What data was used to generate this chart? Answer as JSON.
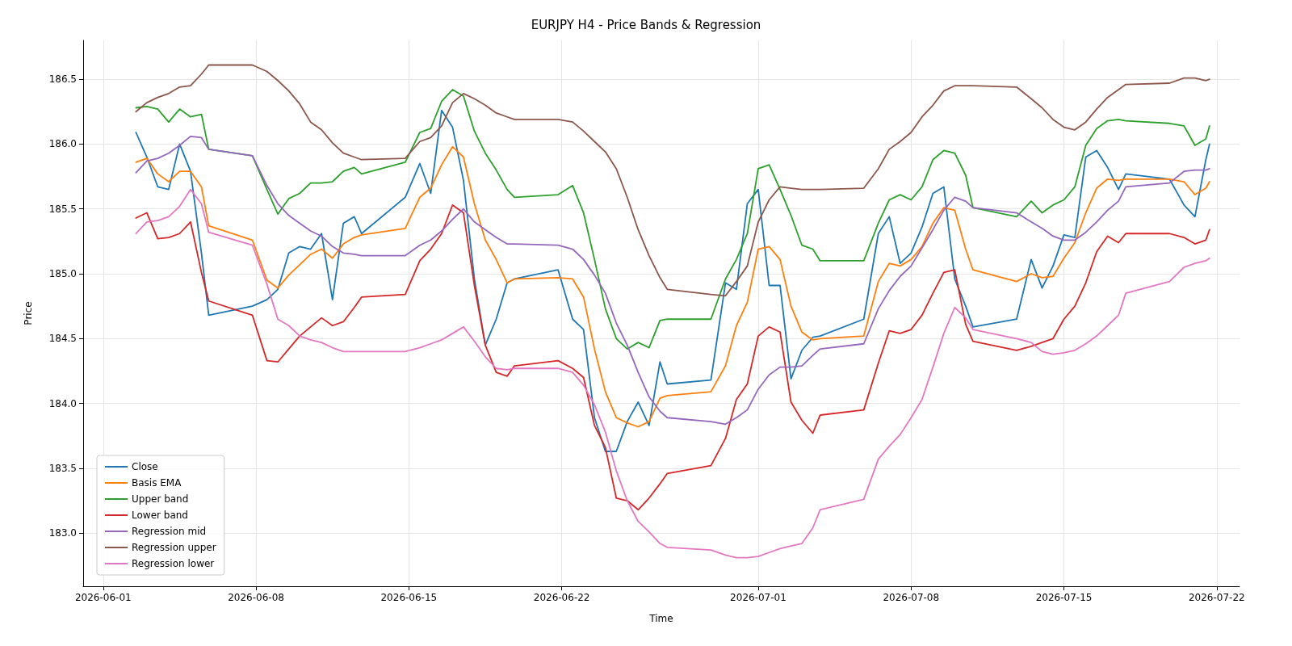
{
  "chart_data": {
    "type": "line",
    "title": "EURJPY H4 - Price Bands & Regression",
    "xlabel": "Time",
    "ylabel": "Price",
    "x": [
      "2026-06-02T12:00",
      "2026-06-03T00:00",
      "2026-06-03T12:00",
      "2026-06-04T00:00",
      "2026-06-04T12:00",
      "2026-06-05T00:00",
      "2026-06-05T12:00",
      "2026-06-05T20:00",
      "2026-06-07T20:00",
      "2026-06-08T12:00",
      "2026-06-09T00:00",
      "2026-06-09T12:00",
      "2026-06-10T00:00",
      "2026-06-10T12:00",
      "2026-06-11T00:00",
      "2026-06-11T12:00",
      "2026-06-12T00:00",
      "2026-06-12T12:00",
      "2026-06-12T20:00",
      "2026-06-14T20:00",
      "2026-06-15T12:00",
      "2026-06-16T00:00",
      "2026-06-16T12:00",
      "2026-06-17T00:00",
      "2026-06-17T12:00",
      "2026-06-18T00:00",
      "2026-06-18T12:00",
      "2026-06-19T00:00",
      "2026-06-19T12:00",
      "2026-06-19T20:00",
      "2026-06-21T20:00",
      "2026-06-22T12:00",
      "2026-06-23T00:00",
      "2026-06-23T12:00",
      "2026-06-24T00:00",
      "2026-06-24T12:00",
      "2026-06-25T00:00",
      "2026-06-25T12:00",
      "2026-06-26T00:00",
      "2026-06-26T12:00",
      "2026-06-26T20:00",
      "2026-06-28T20:00",
      "2026-06-29T12:00",
      "2026-06-30T00:00",
      "2026-06-30T12:00",
      "2026-07-01T00:00",
      "2026-07-01T12:00",
      "2026-07-02T00:00",
      "2026-07-02T12:00",
      "2026-07-03T00:00",
      "2026-07-03T12:00",
      "2026-07-03T20:00",
      "2026-07-05T20:00",
      "2026-07-06T12:00",
      "2026-07-07T00:00",
      "2026-07-07T12:00",
      "2026-07-08T00:00",
      "2026-07-08T12:00",
      "2026-07-09T00:00",
      "2026-07-09T12:00",
      "2026-07-10T00:00",
      "2026-07-10T12:00",
      "2026-07-10T20:00",
      "2026-07-12T20:00",
      "2026-07-13T12:00",
      "2026-07-14T00:00",
      "2026-07-14T12:00",
      "2026-07-15T00:00",
      "2026-07-15T12:00",
      "2026-07-16T00:00",
      "2026-07-16T12:00",
      "2026-07-17T00:00",
      "2026-07-17T12:00",
      "2026-07-17T20:00",
      "2026-07-19T20:00",
      "2026-07-20T12:00",
      "2026-07-21T00:00",
      "2026-07-21T12:00",
      "2026-07-21T16:00"
    ],
    "series": [
      {
        "name": "Close",
        "color": "#1f77b4",
        "values": [
          186.09,
          185.9,
          185.67,
          185.65,
          186.0,
          185.79,
          185.16,
          184.68,
          184.75,
          184.8,
          184.88,
          185.16,
          185.21,
          185.19,
          185.31,
          184.8,
          185.39,
          185.44,
          185.31,
          185.59,
          185.85,
          185.62,
          186.26,
          186.13,
          185.72,
          184.96,
          184.45,
          184.65,
          184.93,
          184.96,
          185.03,
          184.65,
          184.57,
          183.89,
          183.63,
          183.63,
          183.86,
          184.01,
          183.83,
          184.32,
          184.15,
          184.18,
          184.93,
          184.88,
          185.54,
          185.65,
          184.91,
          184.91,
          184.19,
          184.41,
          184.51,
          184.52,
          184.65,
          185.31,
          185.44,
          185.08,
          185.16,
          185.36,
          185.62,
          185.67,
          184.96,
          184.75,
          184.59,
          184.65,
          185.11,
          184.89,
          185.06,
          185.3,
          185.28,
          185.9,
          185.95,
          185.82,
          185.65,
          185.77,
          185.73,
          185.53,
          185.44,
          185.88,
          186.0
        ]
      },
      {
        "name": "Basis EMA",
        "color": "#ff7f0e",
        "values": [
          185.86,
          185.89,
          185.77,
          185.71,
          185.79,
          185.79,
          185.67,
          185.37,
          185.26,
          184.95,
          184.89,
          184.99,
          185.07,
          185.15,
          185.19,
          185.12,
          185.23,
          185.28,
          185.3,
          185.35,
          185.59,
          185.66,
          185.84,
          185.98,
          185.9,
          185.54,
          185.26,
          185.11,
          184.93,
          184.96,
          184.97,
          184.96,
          184.82,
          184.42,
          184.09,
          183.89,
          183.85,
          183.82,
          183.86,
          184.04,
          184.06,
          184.09,
          184.29,
          184.6,
          184.78,
          185.19,
          185.21,
          185.11,
          184.75,
          184.55,
          184.49,
          184.5,
          184.52,
          184.94,
          185.08,
          185.06,
          185.11,
          185.21,
          185.39,
          185.51,
          185.49,
          185.19,
          185.03,
          184.94,
          185.0,
          184.97,
          184.98,
          185.12,
          185.24,
          185.47,
          185.66,
          185.73,
          185.72,
          185.73,
          185.73,
          185.71,
          185.61,
          185.66,
          185.71
        ]
      },
      {
        "name": "Upper band",
        "color": "#2ca02c",
        "values": [
          186.28,
          186.29,
          186.27,
          186.17,
          186.27,
          186.21,
          186.23,
          185.96,
          185.91,
          185.65,
          185.46,
          185.58,
          185.62,
          185.7,
          185.7,
          185.71,
          185.79,
          185.82,
          185.77,
          185.86,
          186.09,
          186.12,
          186.33,
          186.42,
          186.37,
          186.1,
          185.93,
          185.8,
          185.65,
          185.59,
          185.61,
          185.68,
          185.47,
          185.11,
          184.73,
          184.5,
          184.42,
          184.47,
          184.43,
          184.64,
          184.65,
          184.65,
          184.96,
          185.11,
          185.31,
          185.81,
          185.84,
          185.65,
          185.45,
          185.22,
          185.19,
          185.1,
          185.1,
          185.39,
          185.57,
          185.61,
          185.57,
          185.67,
          185.88,
          185.95,
          185.93,
          185.76,
          185.51,
          185.44,
          185.56,
          185.47,
          185.53,
          185.57,
          185.67,
          185.99,
          186.12,
          186.18,
          186.19,
          186.18,
          186.16,
          186.14,
          185.99,
          186.04,
          186.14
        ]
      },
      {
        "name": "Lower band",
        "color": "#d62728",
        "values": [
          185.43,
          185.47,
          185.27,
          185.28,
          185.31,
          185.4,
          185.01,
          184.79,
          184.68,
          184.33,
          184.32,
          184.42,
          184.52,
          184.59,
          184.66,
          184.6,
          184.63,
          184.74,
          184.82,
          184.84,
          185.1,
          185.19,
          185.31,
          185.53,
          185.47,
          184.91,
          184.45,
          184.24,
          184.21,
          184.29,
          184.33,
          184.27,
          184.2,
          183.83,
          183.66,
          183.27,
          183.25,
          183.18,
          183.27,
          183.38,
          183.46,
          183.52,
          183.73,
          184.03,
          184.15,
          184.52,
          184.59,
          184.55,
          184.01,
          183.87,
          183.77,
          183.91,
          183.95,
          184.31,
          184.56,
          184.54,
          184.57,
          184.68,
          184.85,
          185.01,
          185.03,
          184.61,
          184.48,
          184.41,
          184.44,
          184.47,
          184.5,
          184.65,
          184.75,
          184.93,
          185.17,
          185.29,
          185.24,
          185.31,
          185.31,
          185.28,
          185.23,
          185.26,
          185.34
        ]
      },
      {
        "name": "Regression mid",
        "color": "#9467bd",
        "values": [
          185.78,
          185.87,
          185.89,
          185.93,
          185.99,
          186.06,
          186.05,
          185.96,
          185.91,
          185.68,
          185.54,
          185.45,
          185.39,
          185.33,
          185.29,
          185.21,
          185.16,
          185.15,
          185.14,
          185.14,
          185.22,
          185.26,
          185.33,
          185.42,
          185.5,
          185.4,
          185.34,
          185.28,
          185.23,
          185.23,
          185.22,
          185.19,
          185.11,
          184.99,
          184.85,
          184.62,
          184.45,
          184.24,
          184.05,
          183.94,
          183.89,
          183.86,
          183.84,
          183.89,
          183.95,
          184.11,
          184.22,
          184.28,
          184.28,
          184.29,
          184.37,
          184.42,
          184.46,
          184.73,
          184.87,
          184.98,
          185.06,
          185.2,
          185.34,
          185.49,
          185.59,
          185.56,
          185.51,
          185.47,
          185.4,
          185.35,
          185.29,
          185.26,
          185.26,
          185.32,
          185.4,
          185.49,
          185.56,
          185.67,
          185.7,
          185.79,
          185.8,
          185.8,
          185.81
        ]
      },
      {
        "name": "Regression upper",
        "color": "#8c564b",
        "values": [
          186.25,
          186.32,
          186.36,
          186.39,
          186.44,
          186.45,
          186.54,
          186.61,
          186.61,
          186.56,
          186.49,
          186.41,
          186.31,
          186.17,
          186.11,
          186.01,
          185.93,
          185.9,
          185.88,
          185.89,
          186.02,
          186.05,
          186.14,
          186.32,
          186.39,
          186.35,
          186.3,
          186.24,
          186.21,
          186.19,
          186.19,
          186.17,
          186.1,
          186.02,
          185.94,
          185.81,
          185.59,
          185.34,
          185.14,
          184.97,
          184.88,
          184.84,
          184.83,
          184.94,
          185.06,
          185.4,
          185.57,
          185.67,
          185.66,
          185.65,
          185.65,
          185.65,
          185.66,
          185.81,
          185.96,
          186.02,
          186.09,
          186.21,
          186.3,
          186.41,
          186.45,
          186.45,
          186.45,
          186.44,
          186.35,
          186.28,
          186.19,
          186.13,
          186.11,
          186.17,
          186.27,
          186.36,
          186.42,
          186.46,
          186.47,
          186.51,
          186.51,
          186.49,
          186.5
        ]
      },
      {
        "name": "Regression lower",
        "color": "#e377c2",
        "values": [
          185.31,
          185.4,
          185.41,
          185.44,
          185.52,
          185.65,
          185.54,
          185.32,
          185.22,
          184.92,
          184.65,
          184.6,
          184.52,
          184.49,
          184.47,
          184.43,
          184.4,
          184.4,
          184.4,
          184.4,
          184.43,
          184.46,
          184.49,
          184.54,
          184.59,
          184.48,
          184.36,
          184.27,
          184.26,
          184.27,
          184.27,
          184.24,
          184.14,
          183.99,
          183.78,
          183.48,
          183.25,
          183.09,
          183.01,
          182.92,
          182.89,
          182.87,
          182.83,
          182.81,
          182.81,
          182.82,
          182.85,
          182.88,
          182.9,
          182.92,
          183.04,
          183.18,
          183.26,
          183.57,
          183.67,
          183.76,
          183.89,
          184.03,
          184.28,
          184.54,
          184.74,
          184.66,
          184.57,
          184.5,
          184.47,
          184.4,
          184.38,
          184.39,
          184.41,
          184.46,
          184.52,
          184.6,
          184.68,
          184.85,
          184.94,
          185.05,
          185.08,
          185.1,
          185.12
        ]
      }
    ],
    "xlim": [
      "2026-05-31T02:00",
      "2026-07-23T01:00"
    ],
    "xticks": [
      "2026-06-01",
      "2026-06-08",
      "2026-06-15",
      "2026-06-22",
      "2026-07-01",
      "2026-07-08",
      "2026-07-15",
      "2026-07-22"
    ],
    "ylim": [
      182.59,
      186.8
    ],
    "yticks": [
      {
        "value": 183,
        "label": "183.0"
      },
      {
        "value": 183.5,
        "label": "183.5"
      },
      {
        "value": 184,
        "label": "184.0"
      },
      {
        "value": 184.5,
        "label": "184.5"
      },
      {
        "value": 185,
        "label": "185.0"
      },
      {
        "value": 185.5,
        "label": "185.5"
      },
      {
        "value": 186,
        "label": "186.0"
      },
      {
        "value": 186.5,
        "label": "186.5"
      }
    ],
    "grid": true,
    "legend": "lower left",
    "marker": "none",
    "line_style": "solid"
  }
}
